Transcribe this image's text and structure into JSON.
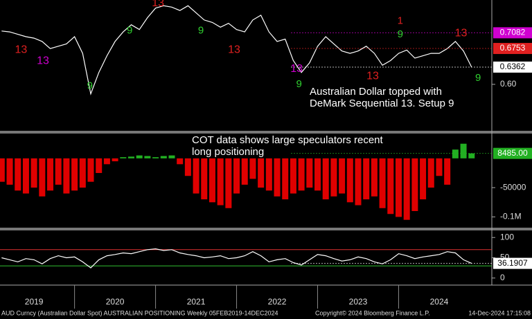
{
  "chart_data": [
    {
      "type": "line",
      "color": "#ffffff",
      "x": [
        2019.1,
        2019.2,
        2019.3,
        2019.4,
        2019.5,
        2019.6,
        2019.7,
        2019.8,
        2019.9,
        2020.0,
        2020.1,
        2020.2,
        2020.3,
        2020.4,
        2020.5,
        2020.6,
        2020.7,
        2020.8,
        2020.9,
        2021.0,
        2021.1,
        2021.2,
        2021.3,
        2021.4,
        2021.5,
        2021.6,
        2021.7,
        2021.8,
        2021.9,
        2022.0,
        2022.1,
        2022.2,
        2022.3,
        2022.4,
        2022.5,
        2022.6,
        2022.7,
        2022.8,
        2022.9,
        2023.0,
        2023.1,
        2023.2,
        2023.3,
        2023.4,
        2023.5,
        2023.6,
        2023.7,
        2023.8,
        2023.9,
        2024.0,
        2024.1,
        2024.2,
        2024.3,
        2024.4,
        2024.5,
        2024.6,
        2024.7,
        2024.8,
        2024.9
      ],
      "values": [
        0.712,
        0.71,
        0.705,
        0.7,
        0.697,
        0.69,
        0.675,
        0.68,
        0.685,
        0.7,
        0.665,
        0.58,
        0.625,
        0.66,
        0.69,
        0.71,
        0.725,
        0.715,
        0.74,
        0.76,
        0.765,
        0.762,
        0.755,
        0.765,
        0.75,
        0.735,
        0.73,
        0.72,
        0.728,
        0.715,
        0.71,
        0.735,
        0.745,
        0.71,
        0.69,
        0.695,
        0.65,
        0.625,
        0.645,
        0.68,
        0.7,
        0.685,
        0.67,
        0.665,
        0.67,
        0.68,
        0.665,
        0.64,
        0.65,
        0.665,
        0.672,
        0.655,
        0.66,
        0.665,
        0.665,
        0.675,
        0.69,
        0.67,
        0.6362
      ],
      "xlim": [
        2019.08,
        2025.15
      ],
      "ylim": [
        0.504,
        0.777
      ],
      "yticks": [
        {
          "value": 0.6,
          "label": "0.60"
        }
      ],
      "levels": [
        {
          "value": 0.7082,
          "color": "#d000d0"
        },
        {
          "value": 0.6753,
          "color": "#e02020"
        },
        {
          "value": 0.6362,
          "color": "#ffffff"
        }
      ],
      "markers": [
        {
          "text": "13",
          "x": 2019.34,
          "y": 0.672,
          "color": "#e02020"
        },
        {
          "text": "13",
          "x": 2019.61,
          "y": 0.649,
          "color": "#d000d0"
        },
        {
          "text": "9",
          "x": 2020.19,
          "y": 0.596,
          "color": "#30d030"
        },
        {
          "text": "9",
          "x": 2020.68,
          "y": 0.712,
          "color": "#30d030"
        },
        {
          "text": "13",
          "x": 2021.03,
          "y": 0.77,
          "color": "#e02020"
        },
        {
          "text": "9",
          "x": 2021.56,
          "y": 0.712,
          "color": "#30d030"
        },
        {
          "text": "13",
          "x": 2021.97,
          "y": 0.672,
          "color": "#e02020"
        },
        {
          "text": "13",
          "x": 2022.74,
          "y": 0.632,
          "color": "#d000d0"
        },
        {
          "text": "9",
          "x": 2022.77,
          "y": 0.6,
          "color": "#30d030"
        },
        {
          "text": "13",
          "x": 2023.68,
          "y": 0.617,
          "color": "#e02020"
        },
        {
          "text": "9",
          "x": 2024.02,
          "y": 0.704,
          "color": "#30d030"
        },
        {
          "text": "1",
          "x": 2024.02,
          "y": 0.733,
          "color": "#e02020"
        },
        {
          "text": "13",
          "x": 2024.77,
          "y": 0.707,
          "color": "#e02020"
        },
        {
          "text": "9",
          "x": 2024.98,
          "y": 0.613,
          "color": "#30d030"
        }
      ],
      "annotation": [
        "Australian Dollar topped with",
        "DeMark Sequential 13. Setup 9"
      ]
    },
    {
      "type": "bar",
      "color": "#22b022",
      "negative_color": "#e00000",
      "x": [
        2019.1,
        2019.2,
        2019.3,
        2019.4,
        2019.5,
        2019.6,
        2019.7,
        2019.8,
        2019.9,
        2020.0,
        2020.1,
        2020.2,
        2020.3,
        2020.4,
        2020.5,
        2020.6,
        2020.7,
        2020.8,
        2020.9,
        2021.0,
        2021.1,
        2021.2,
        2021.3,
        2021.4,
        2021.5,
        2021.6,
        2021.7,
        2021.8,
        2021.9,
        2022.0,
        2022.1,
        2022.2,
        2022.3,
        2022.4,
        2022.5,
        2022.6,
        2022.7,
        2022.8,
        2022.9,
        2023.0,
        2023.1,
        2023.2,
        2023.3,
        2023.4,
        2023.5,
        2023.6,
        2023.7,
        2023.8,
        2023.9,
        2024.0,
        2024.1,
        2024.2,
        2024.3,
        2024.4,
        2024.5,
        2024.6,
        2024.7,
        2024.8,
        2024.9
      ],
      "values": [
        -40000,
        -45000,
        -55000,
        -60000,
        -50000,
        -65000,
        -55000,
        -45000,
        -60000,
        -55000,
        -50000,
        -40000,
        -25000,
        -10000,
        -5000,
        2000,
        3000,
        5000,
        4000,
        2000,
        4000,
        5000,
        -10000,
        -30000,
        -60000,
        -70000,
        -75000,
        -80000,
        -85000,
        -60000,
        -45000,
        -35000,
        -50000,
        -55000,
        -65000,
        -70000,
        -60000,
        -55000,
        -50000,
        -55000,
        -70000,
        -65000,
        -60000,
        -75000,
        -80000,
        -70000,
        -65000,
        -85000,
        -95000,
        -100000,
        -105000,
        -90000,
        -70000,
        -50000,
        -30000,
        -45000,
        15000,
        25000,
        8485
      ],
      "xlim": [
        2019.08,
        2025.15
      ],
      "ylim": [
        -116000,
        40000
      ],
      "yticks": [
        -50000,
        {
          "value": -100000,
          "label": "-0.1M"
        }
      ],
      "levels": [
        {
          "value": 8485,
          "label": "8485.00",
          "color": "#22b022"
        }
      ],
      "annotation": [
        "COT data shows large speculators recent",
        "long positioning"
      ]
    },
    {
      "type": "line",
      "color": "#ffffff",
      "x": [
        2019.1,
        2019.2,
        2019.3,
        2019.4,
        2019.5,
        2019.6,
        2019.7,
        2019.8,
        2019.9,
        2020.0,
        2020.1,
        2020.2,
        2020.3,
        2020.4,
        2020.5,
        2020.6,
        2020.7,
        2020.8,
        2020.9,
        2021.0,
        2021.1,
        2021.2,
        2021.3,
        2021.4,
        2021.5,
        2021.6,
        2021.7,
        2021.8,
        2021.9,
        2022.0,
        2022.1,
        2022.2,
        2022.3,
        2022.4,
        2022.5,
        2022.6,
        2022.7,
        2022.8,
        2022.9,
        2023.0,
        2023.1,
        2023.2,
        2023.3,
        2023.4,
        2023.5,
        2023.6,
        2023.7,
        2023.8,
        2023.9,
        2024.0,
        2024.1,
        2024.2,
        2024.3,
        2024.4,
        2024.5,
        2024.6,
        2024.7,
        2024.8,
        2024.9
      ],
      "values": [
        50,
        45,
        40,
        48,
        45,
        35,
        48,
        55,
        50,
        52,
        40,
        25,
        45,
        55,
        58,
        62,
        60,
        65,
        70,
        72,
        68,
        70,
        62,
        58,
        55,
        50,
        52,
        55,
        48,
        50,
        55,
        65,
        55,
        40,
        45,
        48,
        38,
        32,
        45,
        58,
        55,
        48,
        42,
        45,
        52,
        48,
        40,
        35,
        45,
        60,
        55,
        48,
        52,
        55,
        58,
        65,
        62,
        45,
        36.1907
      ],
      "xlim": [
        2019.08,
        2025.15
      ],
      "ylim": [
        -14,
        114
      ],
      "yticks": [
        0,
        50,
        100
      ],
      "reference_lines": [
        {
          "value": 70,
          "color": "#e03030"
        },
        {
          "value": 30,
          "color": "#30c030"
        }
      ],
      "levels": [
        {
          "value": 36.1907,
          "color": "#ffffff"
        }
      ],
      "xticks": [
        2019,
        2020,
        2021,
        2022,
        2023,
        2024
      ]
    }
  ],
  "footer": {
    "left": "AUD Curncy (Australian Dollar Spot) AUSTRALIAN POSITIONING  Weekly 05FEB2019-14DEC2024",
    "center": "Copyright© 2024 Bloomberg Finance L.P.",
    "right": "14-Dec-2024 17:15:08"
  }
}
